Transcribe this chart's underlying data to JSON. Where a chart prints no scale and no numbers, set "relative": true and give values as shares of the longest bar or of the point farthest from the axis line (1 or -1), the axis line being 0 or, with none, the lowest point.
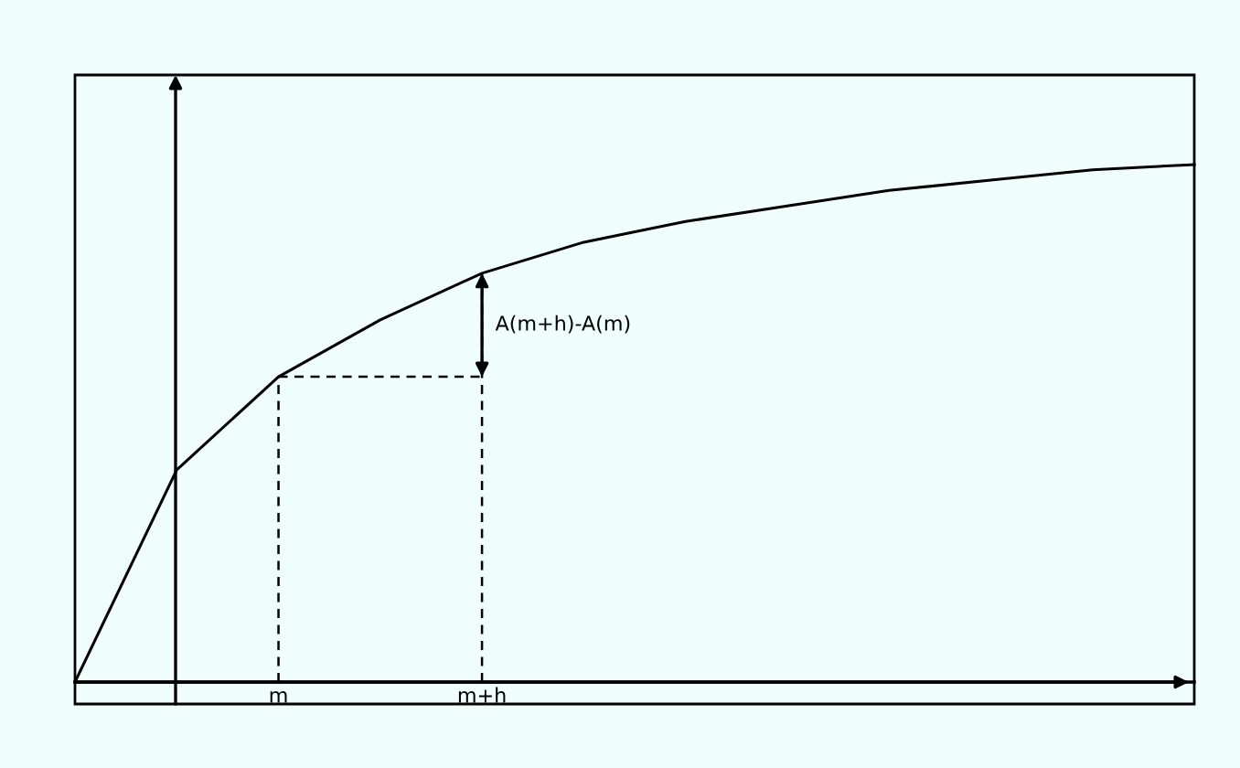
{
  "chart_data": {
    "type": "line",
    "relative": true,
    "categories": [
      null,
      null,
      "m",
      null,
      "m+h",
      null,
      null,
      null,
      null,
      null,
      null,
      null
    ],
    "series": [
      {
        "color": "#000000",
        "values": [
          0,
          0.41,
          0.59,
          0.7,
          0.79,
          0.85,
          0.89,
          0.92,
          0.95,
          0.97,
          0.99,
          1.0
        ]
      },
      {
        "color": "#000000",
        "line_style": "dashed",
        "values": [
          null,
          null,
          0.59,
          0.59,
          0.59,
          null,
          null,
          null,
          null,
          null,
          null,
          null
        ]
      }
    ],
    "annotations": [
      "A(m+h)-A(m)"
    ],
    "grid": false,
    "marker": "none",
    "line_style": "solid"
  }
}
